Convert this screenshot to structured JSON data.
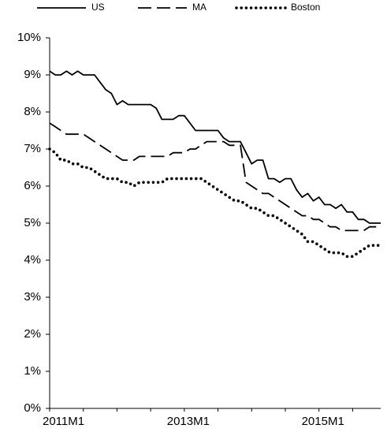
{
  "chart_data": {
    "type": "line",
    "categories": [
      "2011M1",
      null,
      null,
      null,
      null,
      null,
      null,
      null,
      null,
      null,
      null,
      null,
      null,
      null,
      null,
      null,
      null,
      null,
      null,
      null,
      null,
      null,
      null,
      null,
      "2013M1",
      null,
      null,
      null,
      null,
      null,
      null,
      null,
      null,
      null,
      null,
      null,
      null,
      null,
      null,
      null,
      null,
      null,
      null,
      null,
      null,
      null,
      null,
      null,
      "2015M1",
      null,
      null,
      null,
      null,
      null,
      null,
      null,
      null,
      null,
      null,
      null
    ],
    "series": [
      {
        "name": "US",
        "color": "#000000",
        "dash": "solid",
        "values": [
          9.1,
          9.0,
          9.0,
          9.1,
          9.0,
          9.1,
          9.0,
          9.0,
          9.0,
          8.8,
          8.6,
          8.5,
          8.2,
          8.3,
          8.2,
          8.2,
          8.2,
          8.2,
          8.2,
          8.1,
          7.8,
          7.8,
          7.8,
          7.9,
          7.9,
          7.7,
          7.5,
          7.5,
          7.5,
          7.5,
          7.5,
          7.3,
          7.2,
          7.2,
          7.2,
          6.9,
          6.6,
          6.7,
          6.7,
          6.2,
          6.2,
          6.1,
          6.2,
          6.2,
          5.9,
          5.7,
          5.8,
          5.6,
          5.7,
          5.5,
          5.5,
          5.4,
          5.5,
          5.3,
          5.3,
          5.1,
          5.1,
          5.0,
          5.0,
          5.0
        ]
      },
      {
        "name": "MA",
        "color": "#000000",
        "dash": "dashed",
        "values": [
          7.7,
          7.6,
          7.5,
          7.4,
          7.4,
          7.4,
          7.4,
          7.3,
          7.2,
          7.1,
          7.0,
          6.9,
          6.8,
          6.7,
          6.7,
          6.7,
          6.8,
          6.8,
          6.8,
          6.8,
          6.8,
          6.8,
          6.9,
          6.9,
          6.9,
          7.0,
          7.0,
          7.1,
          7.2,
          7.2,
          7.2,
          7.2,
          7.1,
          7.1,
          7.1,
          6.1,
          6.0,
          5.9,
          5.8,
          5.8,
          5.7,
          5.6,
          5.5,
          5.4,
          5.3,
          5.2,
          5.2,
          5.1,
          5.1,
          5.0,
          4.9,
          4.9,
          4.8,
          4.8,
          4.8,
          4.8,
          4.8,
          4.9,
          4.9,
          4.9
        ]
      },
      {
        "name": "Boston",
        "color": "#000000",
        "dash": "dotted",
        "values": [
          7.0,
          6.9,
          6.7,
          6.7,
          6.6,
          6.6,
          6.5,
          6.5,
          6.4,
          6.3,
          6.2,
          6.2,
          6.2,
          6.1,
          6.1,
          6.0,
          6.1,
          6.1,
          6.1,
          6.1,
          6.1,
          6.2,
          6.2,
          6.2,
          6.2,
          6.2,
          6.2,
          6.2,
          6.1,
          6.0,
          5.9,
          5.8,
          5.7,
          5.6,
          5.6,
          5.5,
          5.4,
          5.4,
          5.3,
          5.2,
          5.2,
          5.1,
          5.0,
          4.9,
          4.8,
          4.7,
          4.5,
          4.5,
          4.4,
          4.3,
          4.2,
          4.2,
          4.2,
          4.1,
          4.1,
          4.2,
          4.3,
          4.4,
          4.4,
          4.4
        ]
      }
    ],
    "ylim": [
      0,
      10
    ],
    "yticks": [
      {
        "value": 0,
        "label": "0%"
      },
      {
        "value": 1,
        "label": "1%"
      },
      {
        "value": 2,
        "label": "2%"
      },
      {
        "value": 3,
        "label": "3%"
      },
      {
        "value": 4,
        "label": "4%"
      },
      {
        "value": 5,
        "label": "5%"
      },
      {
        "value": 6,
        "label": "6%"
      },
      {
        "value": 7,
        "label": "7%"
      },
      {
        "value": 8,
        "label": "8%"
      },
      {
        "value": 9,
        "label": "9%"
      },
      {
        "value": 10,
        "label": "10%"
      }
    ],
    "grid": false,
    "legend": "top"
  }
}
